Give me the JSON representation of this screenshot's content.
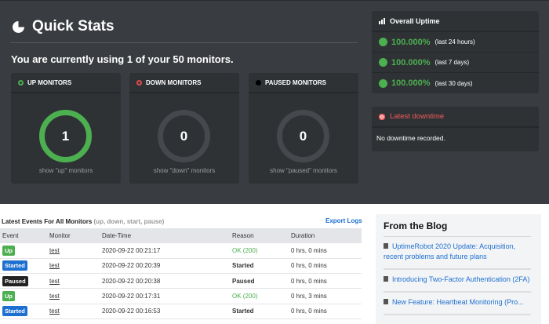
{
  "quick_stats": {
    "title": "Quick Stats",
    "usage": "You are currently using 1 of your 50 monitors.",
    "monitors": [
      {
        "label": "UP MONITORS",
        "count": "1",
        "link": "show \"up\" monitors",
        "color": "#4caf50"
      },
      {
        "label": "DOWN MONITORS",
        "count": "0",
        "link": "show \"down\" monitors",
        "color": "#e04b4b"
      },
      {
        "label": "PAUSED MONITORS",
        "count": "0",
        "link": "show \"paused\" monitors",
        "color": "#000000"
      }
    ]
  },
  "uptime": {
    "title": "Overall Uptime",
    "rows": [
      {
        "value": "100.000%",
        "period": "(last 24 hours)"
      },
      {
        "value": "100.000%",
        "period": "(last 7 days)"
      },
      {
        "value": "100.000%",
        "period": "(last 30 days)"
      }
    ]
  },
  "downtime": {
    "title": "Latest downtime",
    "text": "No downtime recorded.",
    "color": "#f05a5a"
  },
  "events": {
    "title": "Latest Events For All Monitors",
    "subtitle": "(up, down, start, pause)",
    "export": "Export Logs",
    "columns": [
      "Event",
      "Monitor",
      "Date-Time",
      "Reason",
      "Duration"
    ],
    "rows": [
      {
        "event": "Up",
        "monitor": "test",
        "datetime": "2020-09-22 00:21:17",
        "reason": "OK (200)",
        "duration": "0 hrs, 0 mins"
      },
      {
        "event": "Started",
        "monitor": "test",
        "datetime": "2020-09-22 00:20:39",
        "reason": "Started",
        "duration": "0 hrs, 0 mins"
      },
      {
        "event": "Paused",
        "monitor": "test",
        "datetime": "2020-09-22 00:20:38",
        "reason": "Paused",
        "duration": "0 hrs, 0 mins"
      },
      {
        "event": "Up",
        "monitor": "test",
        "datetime": "2020-09-22 00:17:31",
        "reason": "OK (200)",
        "duration": "0 hrs, 3 mins"
      },
      {
        "event": "Started",
        "monitor": "test",
        "datetime": "2020-09-22 00:16:53",
        "reason": "Started",
        "duration": "0 hrs, 0 mins"
      }
    ]
  },
  "blog": {
    "title": "From the Blog",
    "items": [
      "UptimeRobot 2020 Update: Acquisition, recent problems and future plans",
      "Introducing Two-Factor Authentication (2FA)",
      "New Feature: Heartbeat Monitoring (Pro..."
    ]
  }
}
